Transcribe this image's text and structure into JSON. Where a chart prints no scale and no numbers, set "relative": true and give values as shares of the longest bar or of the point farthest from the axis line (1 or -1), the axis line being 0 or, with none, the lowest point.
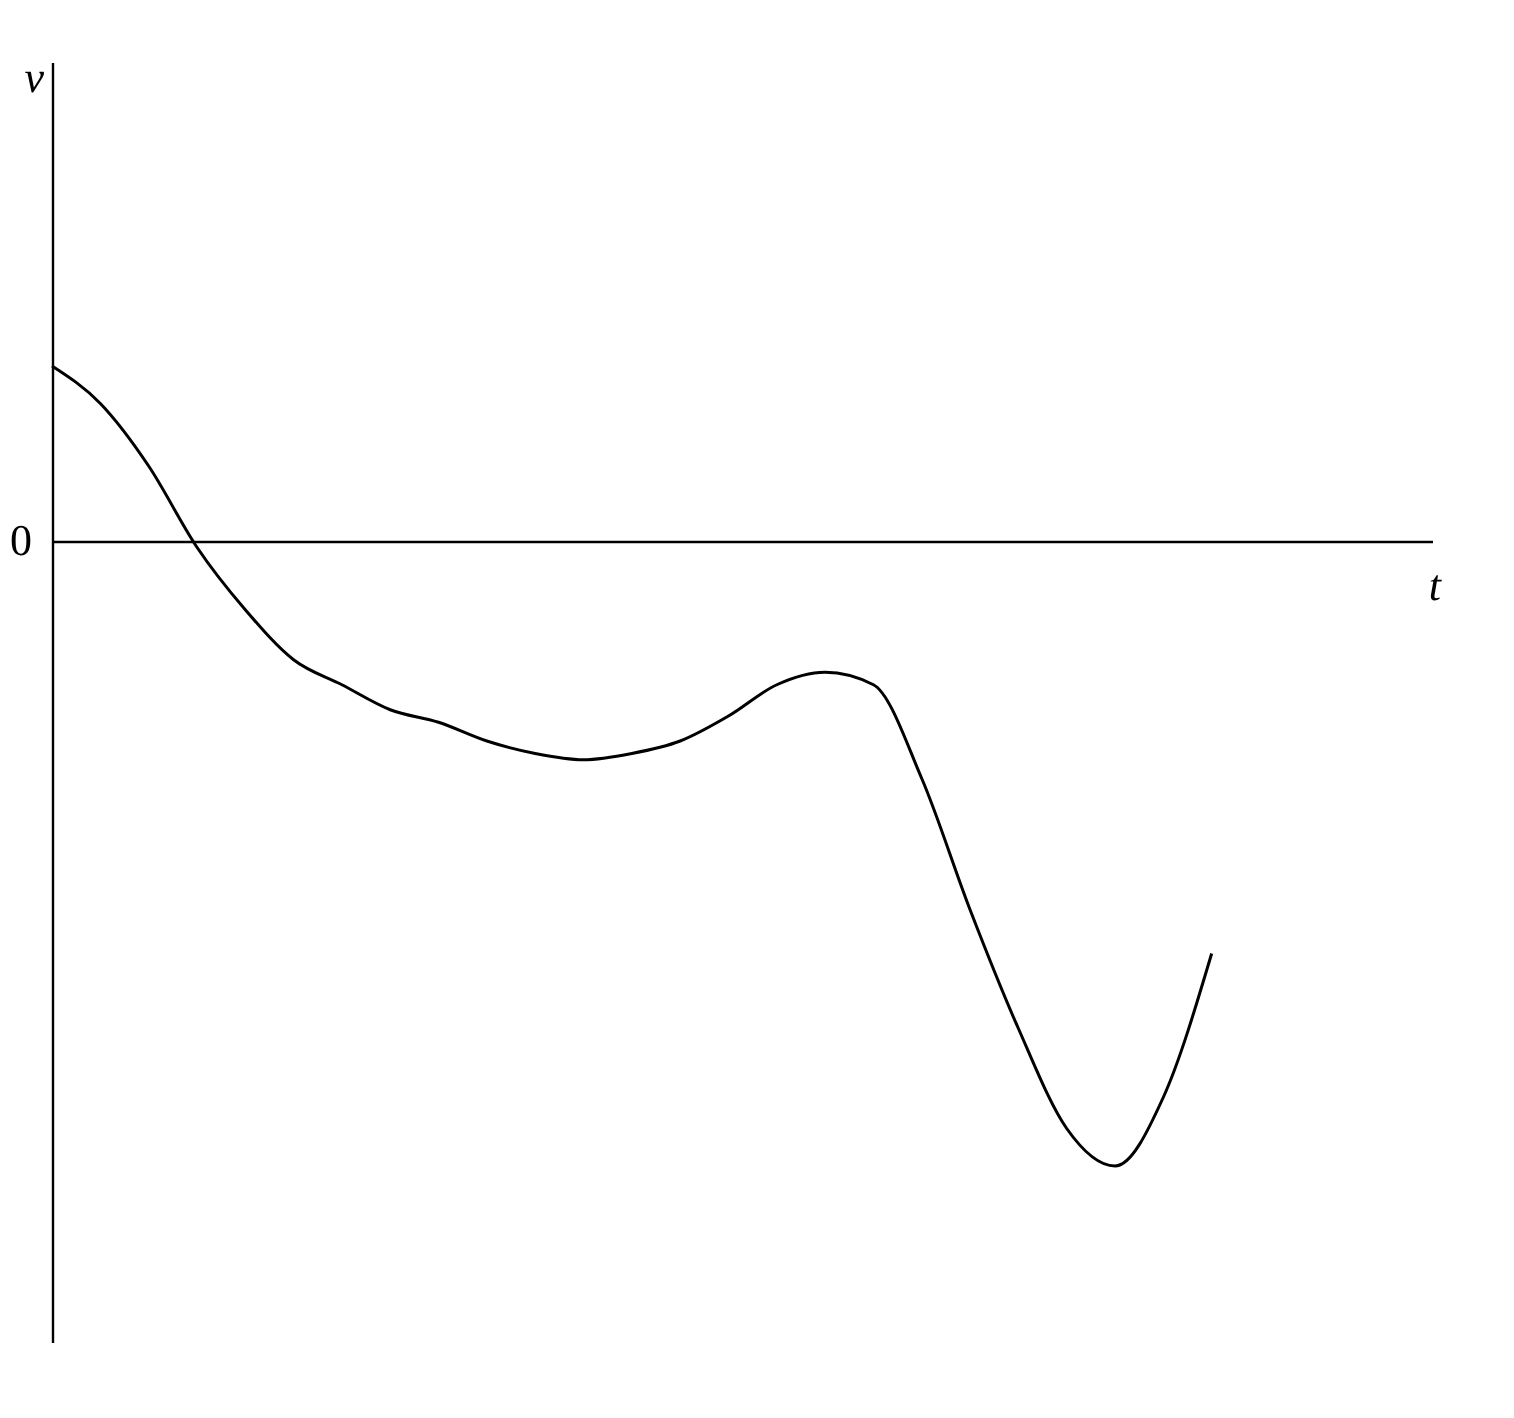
{
  "chart_data": {
    "type": "line",
    "relative": true,
    "xlabel": "t",
    "categories": [
      null,
      null,
      null,
      null,
      null,
      null,
      null,
      null,
      null,
      null,
      null,
      null,
      null,
      null,
      null,
      null,
      null,
      null,
      null,
      null,
      null,
      null,
      null,
      null,
      null
    ],
    "series": [
      {
        "color": "#000000",
        "values": [
          0.28,
          0.22,
          0.12,
          -0.01,
          -0.11,
          -0.19,
          -0.23,
          -0.27,
          -0.29,
          -0.32,
          -0.34,
          -0.35,
          -0.34,
          -0.32,
          -0.28,
          -0.23,
          -0.21,
          -0.23,
          -0.38,
          -0.59,
          -0.78,
          -0.94,
          -1.0,
          -0.89,
          -0.66
        ]
      }
    ],
    "annotations": [
      "0",
      "v"
    ],
    "marker": "none",
    "line_style": "solid"
  }
}
